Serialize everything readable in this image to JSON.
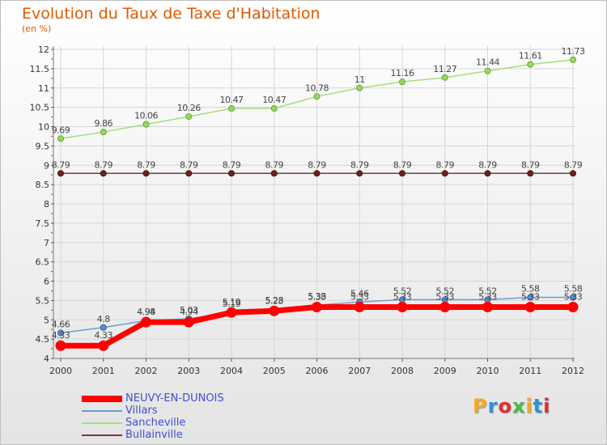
{
  "title": "Evolution du Taux de Taxe d'Habitation",
  "subtitle": "(en %)",
  "logo": {
    "text": "Proxiti",
    "colors": [
      "#f7a81b",
      "#2f8fd8",
      "#e2302b",
      "#4fb848",
      "#f7a81b",
      "#2f8fd8",
      "#e2302b"
    ]
  },
  "chart_data": {
    "type": "line",
    "title": "Evolution du Taux de Taxe d'Habitation",
    "ylabel": "(en %)",
    "xlabel": "",
    "x": [
      "2000",
      "2001",
      "2002",
      "2003",
      "2004",
      "2005",
      "2006",
      "2007",
      "2008",
      "2009",
      "2010",
      "2011",
      "2012"
    ],
    "ylim": [
      4,
      12
    ],
    "yticks": [
      "4",
      "4.5",
      "5",
      "5.5",
      "6",
      "6.5",
      "7",
      "7.5",
      "8",
      "8.5",
      "9",
      "9.5",
      "10",
      "10.5",
      "11",
      "11.5",
      "12"
    ],
    "legend_position": "bottom-left",
    "series": [
      {
        "name": "NEUVY-EN-DUNOIS",
        "color": "#ff0000",
        "values": [
          4.33,
          4.33,
          4.94,
          4.94,
          5.19,
          5.23,
          5.33,
          5.33,
          5.33,
          5.33,
          5.33,
          5.33,
          5.33
        ],
        "labels": [
          "4.33",
          "4.33",
          "4.94",
          "4.94",
          "5.19",
          "5.23",
          "5.33",
          "5.33",
          "5.33",
          "5.33",
          "5.33",
          "5.33",
          "5.33"
        ]
      },
      {
        "name": "Villars",
        "color": "#6b9ed3",
        "values": [
          4.66,
          4.8,
          4.98,
          5.03,
          5.19,
          5.28,
          5.38,
          5.46,
          5.52,
          5.52,
          5.52,
          5.58,
          5.58
        ],
        "labels": [
          "4.66",
          "4.8",
          "4.98",
          "5.03",
          "5.19",
          "5.28",
          "5.38",
          "5.46",
          "5.52",
          "5.52",
          "5.52",
          "5.58",
          "5.58"
        ]
      },
      {
        "name": "Sancheville",
        "color": "#a8de78",
        "values": [
          9.69,
          9.86,
          10.06,
          10.26,
          10.47,
          10.47,
          10.78,
          11,
          11.16,
          11.27,
          11.44,
          11.61,
          11.73
        ],
        "labels": [
          "9.69",
          "9.86",
          "10.06",
          "10.26",
          "10.47",
          "10.47",
          "10.78",
          "11",
          "11.16",
          "11.27",
          "11.44",
          "11.61",
          "11.73"
        ]
      },
      {
        "name": "Bullainville",
        "color": "#7a3a3a",
        "values": [
          8.79,
          8.79,
          8.79,
          8.79,
          8.79,
          8.79,
          8.79,
          8.79,
          8.79,
          8.79,
          8.79,
          8.79,
          8.79
        ],
        "labels": [
          "8.79",
          "8.79",
          "8.79",
          "8.79",
          "8.79",
          "8.79",
          "8.79",
          "8.79",
          "8.79",
          "8.79",
          "8.79",
          "8.79",
          "8.79"
        ]
      }
    ]
  }
}
